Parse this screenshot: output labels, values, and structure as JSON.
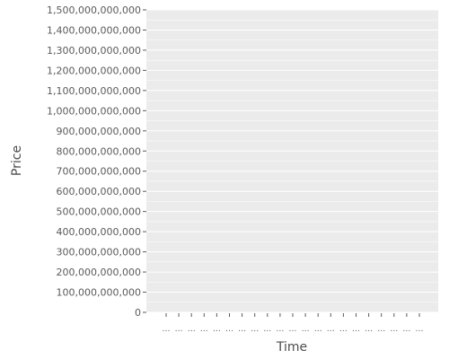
{
  "chart_data": {
    "type": "line",
    "title": "",
    "xlabel": "Time",
    "ylabel": "Price",
    "ylim": [
      0,
      1500000000000
    ],
    "y_ticks": [
      0,
      100000000000,
      200000000000,
      300000000000,
      400000000000,
      500000000000,
      600000000000,
      700000000000,
      800000000000,
      900000000000,
      1000000000000,
      1100000000000,
      1200000000000,
      1300000000000,
      1400000000000,
      1500000000000
    ],
    "y_tick_labels": [
      "0",
      "100,000,000,000",
      "200,000,000,000",
      "300,000,000,000",
      "400,000,000,000",
      "500,000,000,000",
      "600,000,000,000",
      "700,000,000,000",
      "800,000,000,000",
      "900,000,000,000",
      "1,000,000,000,000",
      "1,100,000,000,000",
      "1,200,000,000,000",
      "1,300,000,000,000",
      "1,400,000,000,000",
      "1,500,000,000,000"
    ],
    "x_tick_labels": [
      "…",
      "…",
      "…",
      "…",
      "…",
      "…",
      "…",
      "…",
      "…",
      "…",
      "…",
      "…",
      "…",
      "…",
      "…",
      "…",
      "…",
      "…",
      "…",
      "…",
      "…"
    ],
    "series": [],
    "grid": true,
    "legend": "none",
    "colors": {
      "panel": "#ebebeb",
      "grid": "#ffffff",
      "tick": "#5a5a5a",
      "axis_title": "#4d4d4d"
    }
  }
}
